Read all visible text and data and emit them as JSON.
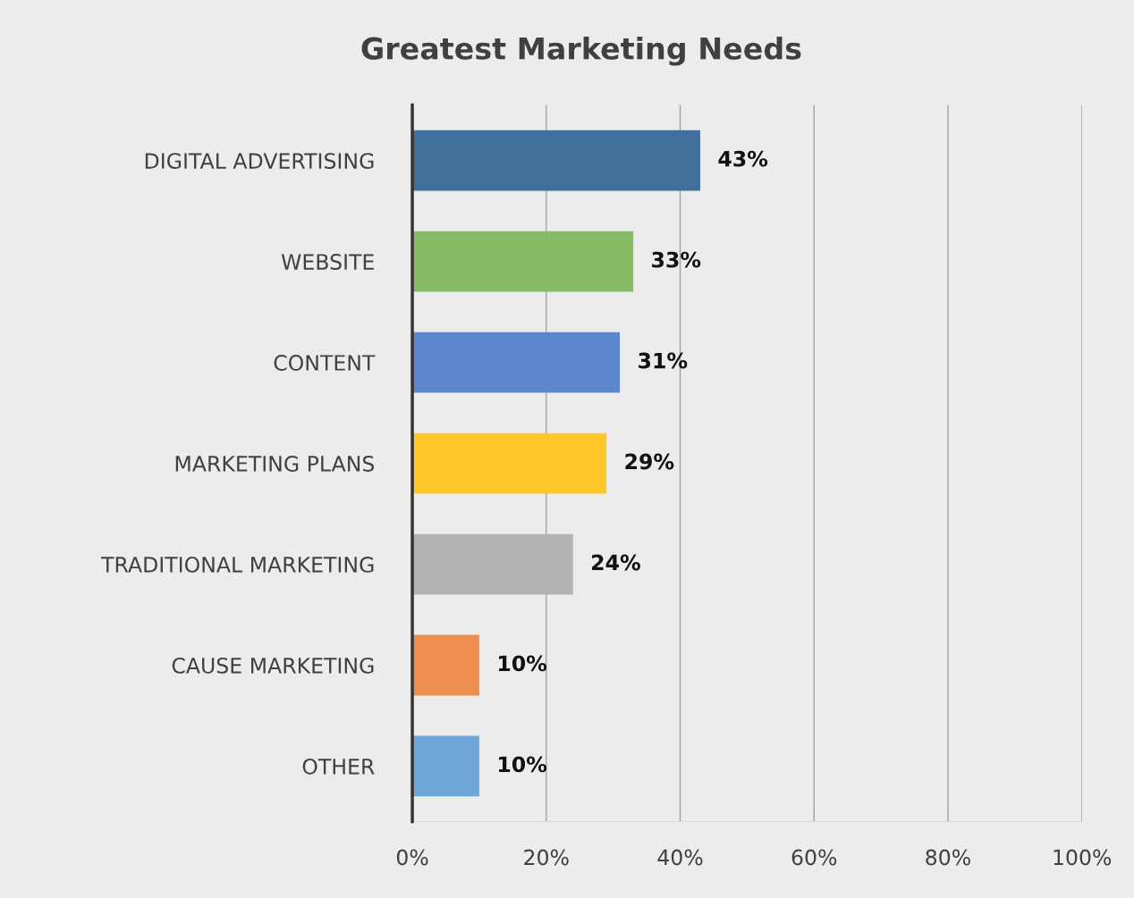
{
  "chart_data": {
    "type": "bar",
    "orientation": "horizontal",
    "title": "Greatest Marketing Needs",
    "categories": [
      "DIGITAL ADVERTISING",
      "WEBSITE",
      "CONTENT",
      "MARKETING PLANS",
      "TRADITIONAL MARKETING",
      "CAUSE MARKETING",
      "OTHER"
    ],
    "values": [
      43,
      33,
      31,
      29,
      24,
      10,
      10
    ],
    "colors": [
      "#3f6f9a",
      "#86ba66",
      "#5e86cc",
      "#fec82a",
      "#b3b3b3",
      "#ee8f4f",
      "#6fa6d8"
    ],
    "value_labels": [
      "43%",
      "33%",
      "31%",
      "29%",
      "24%",
      "10%",
      "10%"
    ],
    "xlim": [
      0,
      100
    ],
    "xticks": [
      {
        "value": 0,
        "label": "0%"
      },
      {
        "value": 20,
        "label": "20%"
      },
      {
        "value": 40,
        "label": "40%"
      },
      {
        "value": 60,
        "label": "60%"
      },
      {
        "value": 80,
        "label": "80%"
      },
      {
        "value": 100,
        "label": "100%"
      }
    ],
    "grid": "x",
    "legend": false
  }
}
